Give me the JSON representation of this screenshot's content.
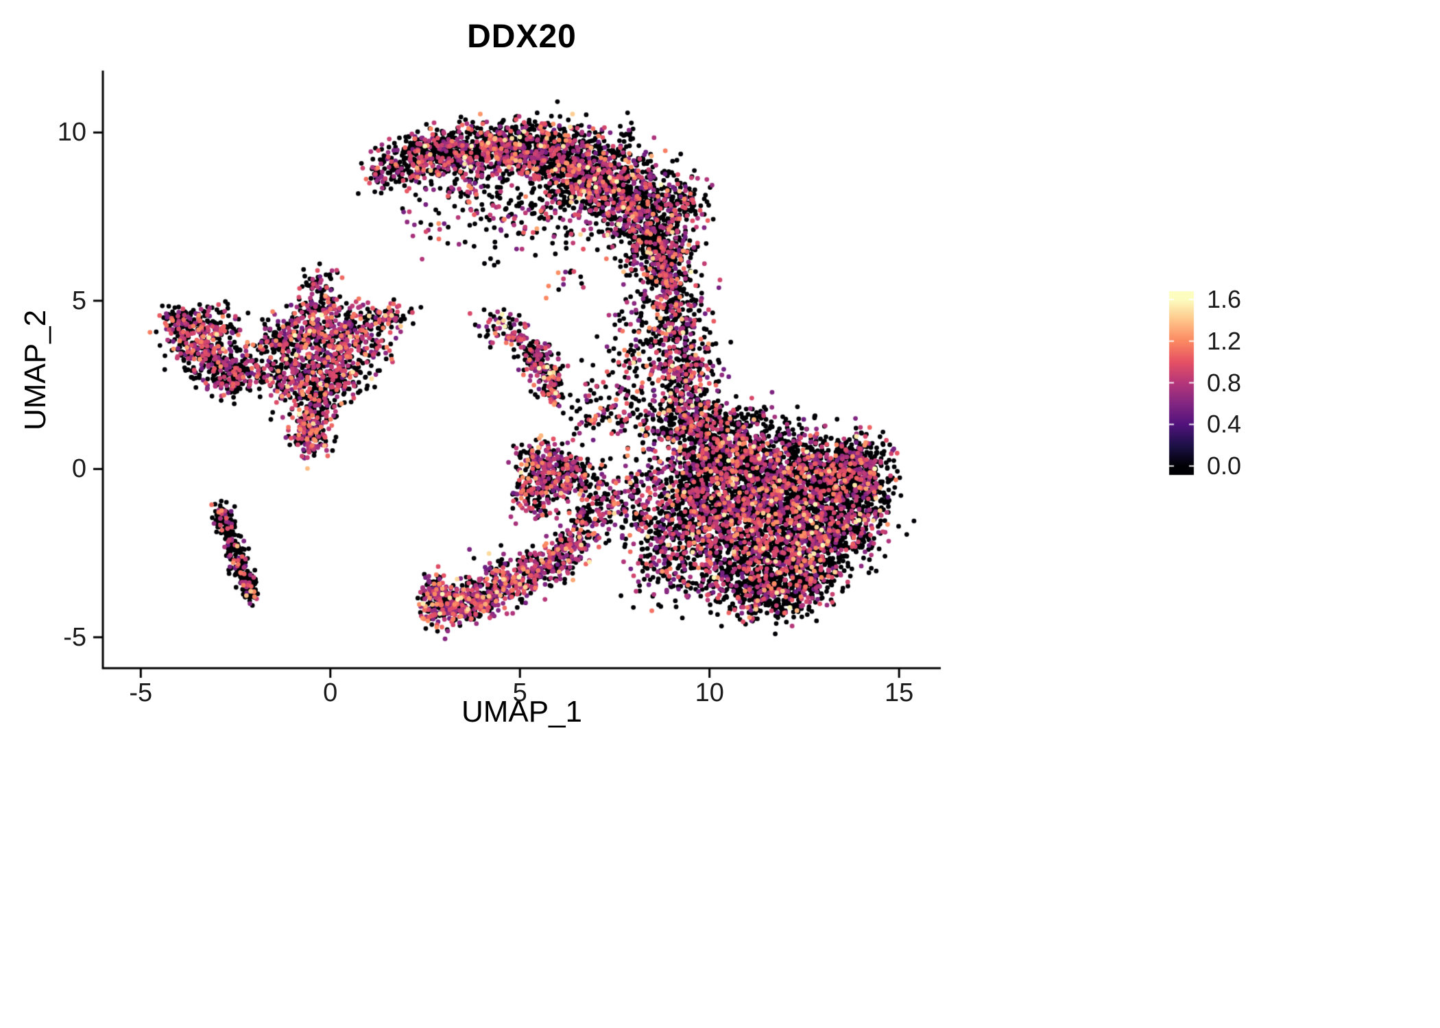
{
  "title": "DDX20",
  "background": "#ffffff",
  "axis_color": "#000000",
  "chart_data": {
    "type": "scatter",
    "title": "DDX20",
    "xlabel": "UMAP_1",
    "ylabel": "UMAP_2",
    "xlim": [
      -6.0,
      16.1
    ],
    "ylim": [
      -5.92,
      11.84
    ],
    "x_ticks": [
      -5,
      0,
      5,
      10,
      15
    ],
    "x_tick_labels": [
      "-5",
      "0",
      "5",
      "10",
      "15"
    ],
    "y_ticks": [
      -5,
      0,
      5,
      10
    ],
    "y_tick_labels": [
      "-5",
      "0",
      "5",
      "10"
    ],
    "grid": false,
    "legend_position": "right",
    "point_radius_px": 3.4,
    "colorbar": {
      "min": 0.0,
      "max": 1.6,
      "tick_values": [
        1.6,
        1.2,
        0.8,
        0.4,
        0.0
      ],
      "tick_labels": [
        "1.6",
        "1.2",
        "0.8",
        "0.4",
        "0.0"
      ],
      "colormap": "magma",
      "stops": [
        "#000004",
        "#1d1147",
        "#51127c",
        "#822681",
        "#b5367a",
        "#e55064",
        "#fb8861",
        "#fec488",
        "#fcfdbf"
      ]
    },
    "value_distribution": {
      "zero_fraction_default": 0.6,
      "mid_max": 1.0,
      "high_max": 1.25,
      "max": 1.6
    },
    "clusters": [
      {
        "name": "top-crescent",
        "zero_fraction": 0.62,
        "blobs": [
          [
            1.4,
            8.8,
            0.25,
            0.3,
            60
          ],
          [
            2.0,
            9.1,
            0.4,
            0.35,
            120
          ],
          [
            2.7,
            9.35,
            0.45,
            0.35,
            160
          ],
          [
            3.5,
            9.5,
            0.5,
            0.4,
            200
          ],
          [
            4.3,
            9.6,
            0.5,
            0.4,
            220
          ],
          [
            5.1,
            9.55,
            0.5,
            0.45,
            260
          ],
          [
            5.9,
            9.3,
            0.55,
            0.5,
            300
          ],
          [
            6.7,
            9.0,
            0.6,
            0.6,
            340
          ],
          [
            7.4,
            8.5,
            0.6,
            0.6,
            340
          ],
          [
            8.0,
            7.8,
            0.55,
            0.6,
            300
          ],
          [
            8.5,
            7.0,
            0.5,
            0.6,
            260
          ],
          [
            8.8,
            6.2,
            0.45,
            0.55,
            200
          ],
          [
            9.3,
            8.0,
            0.35,
            0.5,
            120
          ],
          [
            3.2,
            8.8,
            0.6,
            0.4,
            70
          ],
          [
            4.0,
            8.3,
            0.8,
            0.5,
            60
          ],
          [
            5.0,
            7.6,
            0.8,
            0.6,
            70
          ],
          [
            6.2,
            7.9,
            0.7,
            0.6,
            80
          ],
          [
            4.5,
            7.0,
            1.0,
            0.7,
            30
          ]
        ]
      },
      {
        "name": "right-band",
        "zero_fraction": 0.6,
        "blobs": [
          [
            8.9,
            5.6,
            0.35,
            0.45,
            90
          ],
          [
            9.1,
            4.7,
            0.4,
            0.45,
            110
          ],
          [
            9.2,
            3.8,
            0.45,
            0.5,
            130
          ],
          [
            9.3,
            2.9,
            0.5,
            0.5,
            150
          ],
          [
            9.4,
            2.0,
            0.55,
            0.5,
            170
          ],
          [
            8.3,
            4.6,
            0.5,
            0.6,
            60
          ],
          [
            8.0,
            3.0,
            0.6,
            0.6,
            50
          ],
          [
            7.6,
            2.0,
            0.5,
            0.5,
            60
          ],
          [
            8.6,
            1.2,
            0.5,
            0.4,
            90
          ]
        ]
      },
      {
        "name": "right-main",
        "zero_fraction": 0.66,
        "blobs": [
          [
            10.2,
            0.6,
            0.6,
            0.6,
            260
          ],
          [
            11.2,
            0.4,
            0.7,
            0.6,
            300
          ],
          [
            12.3,
            0.2,
            0.7,
            0.6,
            280
          ],
          [
            13.3,
            0.1,
            0.6,
            0.5,
            240
          ],
          [
            14.0,
            0.2,
            0.4,
            0.4,
            140
          ],
          [
            9.8,
            -0.4,
            0.6,
            0.6,
            240
          ],
          [
            10.8,
            -0.7,
            0.7,
            0.7,
            320
          ],
          [
            11.9,
            -0.9,
            0.7,
            0.7,
            320
          ],
          [
            12.9,
            -1.0,
            0.7,
            0.6,
            280
          ],
          [
            13.8,
            -0.9,
            0.5,
            0.5,
            180
          ],
          [
            10.2,
            -1.8,
            0.7,
            0.6,
            280
          ],
          [
            11.3,
            -2.0,
            0.7,
            0.6,
            300
          ],
          [
            12.4,
            -2.2,
            0.7,
            0.6,
            280
          ],
          [
            13.3,
            -2.1,
            0.5,
            0.5,
            180
          ],
          [
            10.6,
            -3.0,
            0.7,
            0.5,
            240
          ],
          [
            11.7,
            -3.2,
            0.7,
            0.5,
            240
          ],
          [
            12.6,
            -3.1,
            0.5,
            0.45,
            160
          ],
          [
            11.2,
            -3.9,
            0.6,
            0.35,
            120
          ],
          [
            12.0,
            -3.8,
            0.5,
            0.3,
            90
          ],
          [
            9.4,
            -1.2,
            0.5,
            0.7,
            150
          ],
          [
            9.0,
            -2.2,
            0.45,
            0.6,
            100
          ],
          [
            14.3,
            -0.3,
            0.3,
            0.5,
            80
          ],
          [
            13.9,
            -1.8,
            0.4,
            0.4,
            90
          ],
          [
            9.7,
            1.3,
            0.5,
            0.4,
            110
          ],
          [
            10.6,
            1.4,
            0.5,
            0.35,
            90
          ]
        ]
      },
      {
        "name": "left-small",
        "zero_fraction": 0.58,
        "blobs": [
          [
            -3.3,
            3.6,
            0.45,
            0.45,
            200
          ],
          [
            -3.8,
            4.2,
            0.35,
            0.3,
            90
          ],
          [
            -2.8,
            3.0,
            0.4,
            0.35,
            120
          ],
          [
            -2.6,
            2.6,
            0.3,
            0.25,
            60
          ],
          [
            -4.1,
            4.5,
            0.2,
            0.2,
            40
          ],
          [
            -3.0,
            4.3,
            0.35,
            0.3,
            80
          ]
        ]
      },
      {
        "name": "left-central",
        "zero_fraction": 0.52,
        "blobs": [
          [
            -0.6,
            3.3,
            0.55,
            0.6,
            280
          ],
          [
            -0.4,
            4.3,
            0.35,
            0.5,
            130
          ],
          [
            -0.35,
            5.2,
            0.25,
            0.4,
            80
          ],
          [
            -1.3,
            3.9,
            0.4,
            0.3,
            80
          ],
          [
            0.3,
            4.0,
            0.4,
            0.3,
            80
          ],
          [
            0.9,
            4.45,
            0.4,
            0.25,
            70
          ],
          [
            1.6,
            4.5,
            0.3,
            0.2,
            50
          ],
          [
            0.5,
            3.1,
            0.45,
            0.4,
            110
          ],
          [
            -0.2,
            2.4,
            0.4,
            0.4,
            120
          ],
          [
            -0.45,
            1.6,
            0.3,
            0.4,
            110
          ],
          [
            -0.55,
            0.95,
            0.25,
            0.3,
            130
          ],
          [
            -1.2,
            2.6,
            0.4,
            0.35,
            80
          ],
          [
            -1.9,
            2.9,
            0.3,
            0.25,
            50
          ],
          [
            1.1,
            3.6,
            0.35,
            0.3,
            60
          ]
        ]
      },
      {
        "name": "lower-left-streak",
        "zero_fraction": 0.8,
        "blobs": [
          [
            -2.9,
            -1.3,
            0.15,
            0.15,
            30
          ],
          [
            -2.8,
            -1.5,
            0.12,
            0.2,
            50
          ],
          [
            -2.65,
            -2.0,
            0.12,
            0.25,
            55
          ],
          [
            -2.5,
            -2.5,
            0.12,
            0.25,
            55
          ],
          [
            -2.35,
            -3.0,
            0.12,
            0.25,
            50
          ],
          [
            -2.2,
            -3.4,
            0.12,
            0.2,
            45
          ],
          [
            -2.05,
            -3.7,
            0.1,
            0.15,
            35
          ]
        ]
      },
      {
        "name": "bottom-center",
        "zero_fraction": 0.45,
        "blobs": [
          [
            2.9,
            -4.0,
            0.25,
            0.3,
            130
          ],
          [
            3.4,
            -4.1,
            0.3,
            0.25,
            110
          ],
          [
            3.9,
            -3.9,
            0.35,
            0.25,
            100
          ],
          [
            4.4,
            -3.6,
            0.4,
            0.3,
            110
          ],
          [
            5.0,
            -3.3,
            0.4,
            0.3,
            100
          ],
          [
            5.5,
            -3.0,
            0.4,
            0.3,
            90
          ],
          [
            6.0,
            -2.7,
            0.35,
            0.3,
            80
          ],
          [
            6.3,
            -2.3,
            0.3,
            0.3,
            70
          ],
          [
            2.75,
            -3.5,
            0.15,
            0.25,
            50
          ],
          [
            4.6,
            -2.9,
            0.5,
            0.3,
            40
          ]
        ]
      },
      {
        "name": "bottom-bridge",
        "zero_fraction": 0.55,
        "blobs": [
          [
            6.7,
            -1.7,
            0.3,
            0.35,
            60
          ],
          [
            7.0,
            -1.0,
            0.3,
            0.4,
            60
          ],
          [
            6.6,
            -0.3,
            0.35,
            0.4,
            70
          ],
          [
            7.6,
            -0.6,
            0.5,
            0.5,
            50
          ],
          [
            8.3,
            -0.5,
            0.4,
            0.5,
            60
          ],
          [
            8.0,
            -1.5,
            0.5,
            0.5,
            70
          ],
          [
            8.6,
            -2.6,
            0.4,
            0.5,
            60
          ],
          [
            9.0,
            -3.3,
            0.4,
            0.4,
            50
          ]
        ]
      },
      {
        "name": "center-left-knot",
        "zero_fraction": 0.5,
        "blobs": [
          [
            5.7,
            -0.3,
            0.4,
            0.45,
            170
          ],
          [
            5.5,
            0.3,
            0.3,
            0.3,
            80
          ],
          [
            6.2,
            0.0,
            0.3,
            0.3,
            70
          ],
          [
            5.3,
            -0.9,
            0.3,
            0.3,
            60
          ]
        ]
      },
      {
        "name": "mid-small",
        "zero_fraction": 0.5,
        "blobs": [
          [
            4.6,
            4.1,
            0.3,
            0.25,
            45
          ],
          [
            5.0,
            3.9,
            0.2,
            0.2,
            25
          ],
          [
            5.55,
            3.1,
            0.25,
            0.3,
            90
          ],
          [
            5.8,
            2.6,
            0.2,
            0.25,
            60
          ],
          [
            5.3,
            3.5,
            0.15,
            0.15,
            25
          ],
          [
            4.3,
            4.6,
            0.3,
            0.2,
            12
          ],
          [
            6.0,
            2.1,
            0.15,
            0.15,
            18
          ],
          [
            7.0,
            1.5,
            0.4,
            0.4,
            40
          ],
          [
            6.4,
            5.6,
            0.3,
            0.3,
            12
          ],
          [
            2.6,
            7.2,
            0.5,
            0.5,
            18
          ]
        ]
      }
    ]
  }
}
